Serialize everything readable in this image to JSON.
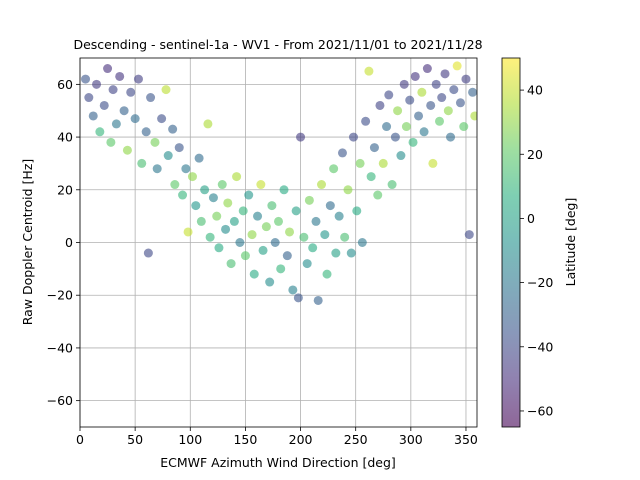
{
  "chart_data": {
    "type": "scatter",
    "title": "Descending - sentinel-1a - WV1 - From 2021/11/01 to 2021/11/28",
    "xlabel": "ECMWF Azimuth Wind Direction [deg]",
    "ylabel": "Raw Doppler Centroid [Hz]",
    "xlim": [
      0,
      360
    ],
    "ylim": [
      -70,
      70
    ],
    "xticks": [
      "0",
      "50",
      "100",
      "150",
      "200",
      "250",
      "300",
      "350"
    ],
    "yticks": [
      "−60",
      "−40",
      "−20",
      "0",
      "20",
      "40",
      "60"
    ],
    "grid": true,
    "colorbar": {
      "label": "Latitude [deg]",
      "range": [
        -65,
        50
      ],
      "ticks": [
        "−60",
        "−40",
        "−20",
        "0",
        "20",
        "40"
      ],
      "colormap": "viridis",
      "alpha": 0.6
    },
    "points": [
      {
        "x": 5,
        "y": 62,
        "c": -35
      },
      {
        "x": 8,
        "y": 55,
        "c": -40
      },
      {
        "x": 12,
        "y": 48,
        "c": -30
      },
      {
        "x": 15,
        "y": 60,
        "c": -45
      },
      {
        "x": 18,
        "y": 42,
        "c": 10
      },
      {
        "x": 22,
        "y": 52,
        "c": -38
      },
      {
        "x": 25,
        "y": 66,
        "c": -50
      },
      {
        "x": 28,
        "y": 38,
        "c": 20
      },
      {
        "x": 30,
        "y": 58,
        "c": -42
      },
      {
        "x": 33,
        "y": 45,
        "c": -20
      },
      {
        "x": 36,
        "y": 63,
        "c": -48
      },
      {
        "x": 40,
        "y": 50,
        "c": -30
      },
      {
        "x": 43,
        "y": 35,
        "c": 30
      },
      {
        "x": 46,
        "y": 57,
        "c": -40
      },
      {
        "x": 50,
        "y": 47,
        "c": -25
      },
      {
        "x": 53,
        "y": 62,
        "c": -44
      },
      {
        "x": 56,
        "y": 30,
        "c": 15
      },
      {
        "x": 60,
        "y": 42,
        "c": -30
      },
      {
        "x": 62,
        "y": -4,
        "c": -40
      },
      {
        "x": 64,
        "y": 55,
        "c": -35
      },
      {
        "x": 68,
        "y": 38,
        "c": 25
      },
      {
        "x": 70,
        "y": 28,
        "c": -20
      },
      {
        "x": 74,
        "y": 47,
        "c": -38
      },
      {
        "x": 78,
        "y": 58,
        "c": 38
      },
      {
        "x": 80,
        "y": 33,
        "c": -10
      },
      {
        "x": 84,
        "y": 43,
        "c": -30
      },
      {
        "x": 86,
        "y": 22,
        "c": 20
      },
      {
        "x": 90,
        "y": 36,
        "c": -35
      },
      {
        "x": 93,
        "y": 18,
        "c": 10
      },
      {
        "x": 96,
        "y": 28,
        "c": -20
      },
      {
        "x": 98,
        "y": 4,
        "c": 40
      },
      {
        "x": 102,
        "y": 25,
        "c": 30
      },
      {
        "x": 105,
        "y": 14,
        "c": -5
      },
      {
        "x": 108,
        "y": 32,
        "c": -25
      },
      {
        "x": 110,
        "y": 8,
        "c": 15
      },
      {
        "x": 113,
        "y": 20,
        "c": 0
      },
      {
        "x": 116,
        "y": 45,
        "c": 35
      },
      {
        "x": 118,
        "y": 2,
        "c": 10
      },
      {
        "x": 121,
        "y": 17,
        "c": -15
      },
      {
        "x": 124,
        "y": 10,
        "c": 25
      },
      {
        "x": 126,
        "y": -2,
        "c": 5
      },
      {
        "x": 129,
        "y": 22,
        "c": 20
      },
      {
        "x": 132,
        "y": 5,
        "c": -10
      },
      {
        "x": 134,
        "y": 15,
        "c": 30
      },
      {
        "x": 137,
        "y": -8,
        "c": 15
      },
      {
        "x": 140,
        "y": 8,
        "c": 0
      },
      {
        "x": 142,
        "y": 25,
        "c": 35
      },
      {
        "x": 145,
        "y": 0,
        "c": -20
      },
      {
        "x": 148,
        "y": 12,
        "c": 10
      },
      {
        "x": 150,
        "y": -5,
        "c": 20
      },
      {
        "x": 153,
        "y": 18,
        "c": -5
      },
      {
        "x": 156,
        "y": 3,
        "c": 30
      },
      {
        "x": 158,
        "y": -12,
        "c": 5
      },
      {
        "x": 161,
        "y": 10,
        "c": -15
      },
      {
        "x": 164,
        "y": 22,
        "c": 40
      },
      {
        "x": 166,
        "y": -3,
        "c": 0
      },
      {
        "x": 169,
        "y": 6,
        "c": 25
      },
      {
        "x": 172,
        "y": -15,
        "c": -10
      },
      {
        "x": 174,
        "y": 14,
        "c": 15
      },
      {
        "x": 177,
        "y": 0,
        "c": -25
      },
      {
        "x": 180,
        "y": 8,
        "c": 20
      },
      {
        "x": 182,
        "y": -10,
        "c": 10
      },
      {
        "x": 185,
        "y": 20,
        "c": 5
      },
      {
        "x": 188,
        "y": -5,
        "c": -30
      },
      {
        "x": 190,
        "y": 4,
        "c": 30
      },
      {
        "x": 193,
        "y": -18,
        "c": -15
      },
      {
        "x": 196,
        "y": 12,
        "c": 0
      },
      {
        "x": 198,
        "y": -21,
        "c": -35
      },
      {
        "x": 200,
        "y": 40,
        "c": -45
      },
      {
        "x": 203,
        "y": 2,
        "c": 15
      },
      {
        "x": 206,
        "y": -8,
        "c": -10
      },
      {
        "x": 208,
        "y": 16,
        "c": 25
      },
      {
        "x": 211,
        "y": -2,
        "c": 5
      },
      {
        "x": 214,
        "y": 8,
        "c": -20
      },
      {
        "x": 216,
        "y": -22,
        "c": -30
      },
      {
        "x": 219,
        "y": 22,
        "c": 35
      },
      {
        "x": 222,
        "y": 3,
        "c": -5
      },
      {
        "x": 224,
        "y": -12,
        "c": 10
      },
      {
        "x": 227,
        "y": 14,
        "c": -25
      },
      {
        "x": 230,
        "y": 28,
        "c": 20
      },
      {
        "x": 232,
        "y": -4,
        "c": 0
      },
      {
        "x": 235,
        "y": 10,
        "c": -15
      },
      {
        "x": 238,
        "y": 34,
        "c": -35
      },
      {
        "x": 240,
        "y": 2,
        "c": 15
      },
      {
        "x": 243,
        "y": 20,
        "c": 30
      },
      {
        "x": 246,
        "y": -4,
        "c": -10
      },
      {
        "x": 248,
        "y": 40,
        "c": -40
      },
      {
        "x": 251,
        "y": 12,
        "c": 5
      },
      {
        "x": 254,
        "y": 30,
        "c": 25
      },
      {
        "x": 256,
        "y": 0,
        "c": -20
      },
      {
        "x": 259,
        "y": 46,
        "c": -38
      },
      {
        "x": 262,
        "y": 65,
        "c": 40
      },
      {
        "x": 264,
        "y": 25,
        "c": 10
      },
      {
        "x": 267,
        "y": 36,
        "c": -30
      },
      {
        "x": 270,
        "y": 18,
        "c": 20
      },
      {
        "x": 272,
        "y": 52,
        "c": -42
      },
      {
        "x": 275,
        "y": 30,
        "c": 35
      },
      {
        "x": 278,
        "y": 44,
        "c": -25
      },
      {
        "x": 280,
        "y": 56,
        "c": -40
      },
      {
        "x": 283,
        "y": 22,
        "c": 15
      },
      {
        "x": 286,
        "y": 40,
        "c": -35
      },
      {
        "x": 288,
        "y": 50,
        "c": 30
      },
      {
        "x": 291,
        "y": 33,
        "c": -10
      },
      {
        "x": 294,
        "y": 60,
        "c": -45
      },
      {
        "x": 296,
        "y": 44,
        "c": 25
      },
      {
        "x": 299,
        "y": 54,
        "c": -38
      },
      {
        "x": 302,
        "y": 38,
        "c": 10
      },
      {
        "x": 304,
        "y": 63,
        "c": -48
      },
      {
        "x": 307,
        "y": 48,
        "c": -30
      },
      {
        "x": 310,
        "y": 57,
        "c": 35
      },
      {
        "x": 312,
        "y": 42,
        "c": -20
      },
      {
        "x": 315,
        "y": 66,
        "c": -50
      },
      {
        "x": 318,
        "y": 52,
        "c": -35
      },
      {
        "x": 320,
        "y": 30,
        "c": 40
      },
      {
        "x": 323,
        "y": 60,
        "c": -42
      },
      {
        "x": 326,
        "y": 46,
        "c": 20
      },
      {
        "x": 328,
        "y": 55,
        "c": -40
      },
      {
        "x": 331,
        "y": 64,
        "c": -46
      },
      {
        "x": 334,
        "y": 50,
        "c": 30
      },
      {
        "x": 336,
        "y": 40,
        "c": -25
      },
      {
        "x": 339,
        "y": 58,
        "c": -38
      },
      {
        "x": 342,
        "y": 67,
        "c": 45
      },
      {
        "x": 345,
        "y": 53,
        "c": -35
      },
      {
        "x": 348,
        "y": 44,
        "c": 20
      },
      {
        "x": 350,
        "y": 62,
        "c": -44
      },
      {
        "x": 353,
        "y": 3,
        "c": -40
      },
      {
        "x": 356,
        "y": 57,
        "c": -30
      },
      {
        "x": 358,
        "y": 48,
        "c": 35
      }
    ]
  }
}
